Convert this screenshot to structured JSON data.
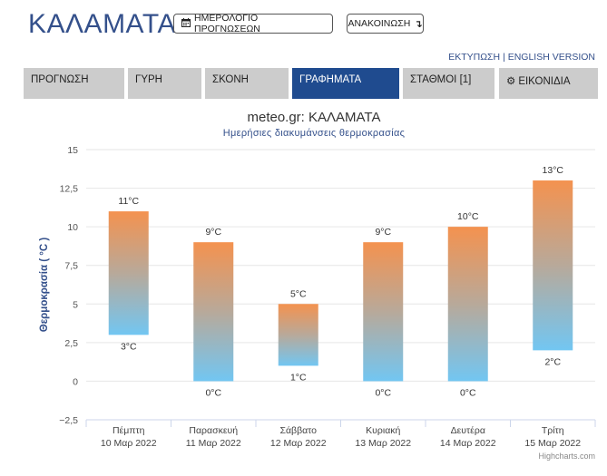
{
  "header": {
    "city": "ΚΑΛΑΜΑΤΑ",
    "calendar_button": "ΗΜΕΡΟΛΟΓΙΟ ΠΡΟΓΝΩΣΕΩΝ",
    "announcement_button": "ΑΝΑΚΟΙΝΩΣΗ",
    "calendar_icon": "calendar-icon",
    "announcement_icon": "arrow-down-icon",
    "print_link": "ΕΚΤΥΠΩΣΗ",
    "link_separator": "|",
    "english_link": "ENGLISH VERSION"
  },
  "tabs": [
    {
      "label": "ΠΡΟΓΝΩΣΗ",
      "active": false
    },
    {
      "label": "ΓΥΡΗ",
      "active": false
    },
    {
      "label": "ΣΚΟΝΗ",
      "active": false
    },
    {
      "label": "ΓΡΑΦΗΜΑΤΑ",
      "active": true
    },
    {
      "label": "ΣΤΑΘΜΟΙ [1]",
      "active": false
    },
    {
      "label": "ΕΙΚΟΝΙΔΙΑ",
      "active": false,
      "icon": "gear-icon"
    }
  ],
  "colors": {
    "accent": "#34508b",
    "active_tab": "#1f4b8f",
    "tab_bg": "#cccccc",
    "bar_top": "#f4924f",
    "bar_mid": "#b8a99a",
    "bar_bottom": "#72c6f2"
  },
  "chart_data": {
    "type": "columnrange",
    "title": "meteo.gr: ΚΑΛΑΜΑΤΑ",
    "subtitle": "Ημερήσιες διακυμάνσεις θερμοκρασίας",
    "ylabel": "Θερμοκρασία ( °C )",
    "ylim": [
      -2.5,
      15
    ],
    "yticks": [
      -2.5,
      0,
      2.5,
      5,
      7.5,
      10,
      12.5,
      15
    ],
    "ytick_labels": [
      "−2,5",
      "0",
      "2,5",
      "5",
      "7,5",
      "10",
      "12,5",
      "15"
    ],
    "categories": [
      [
        "Πέμπτη",
        "10 Μαρ 2022"
      ],
      [
        "Παρασκευή",
        "11 Μαρ 2022"
      ],
      [
        "Σάββατο",
        "12 Μαρ 2022"
      ],
      [
        "Κυριακή",
        "13 Μαρ 2022"
      ],
      [
        "Δευτέρα",
        "14 Μαρ 2022"
      ],
      [
        "Τρίτη",
        "15 Μαρ 2022"
      ]
    ],
    "low": [
      3,
      0,
      1,
      0,
      0,
      2
    ],
    "high": [
      11,
      9,
      5,
      9,
      10,
      13
    ],
    "low_labels": [
      "3°C",
      "0°C",
      "1°C",
      "0°C",
      "0°C",
      "2°C"
    ],
    "high_labels": [
      "11°C",
      "9°C",
      "5°C",
      "9°C",
      "10°C",
      "13°C"
    ],
    "grid": true,
    "legend": "none",
    "credits": "Highcharts.com"
  }
}
